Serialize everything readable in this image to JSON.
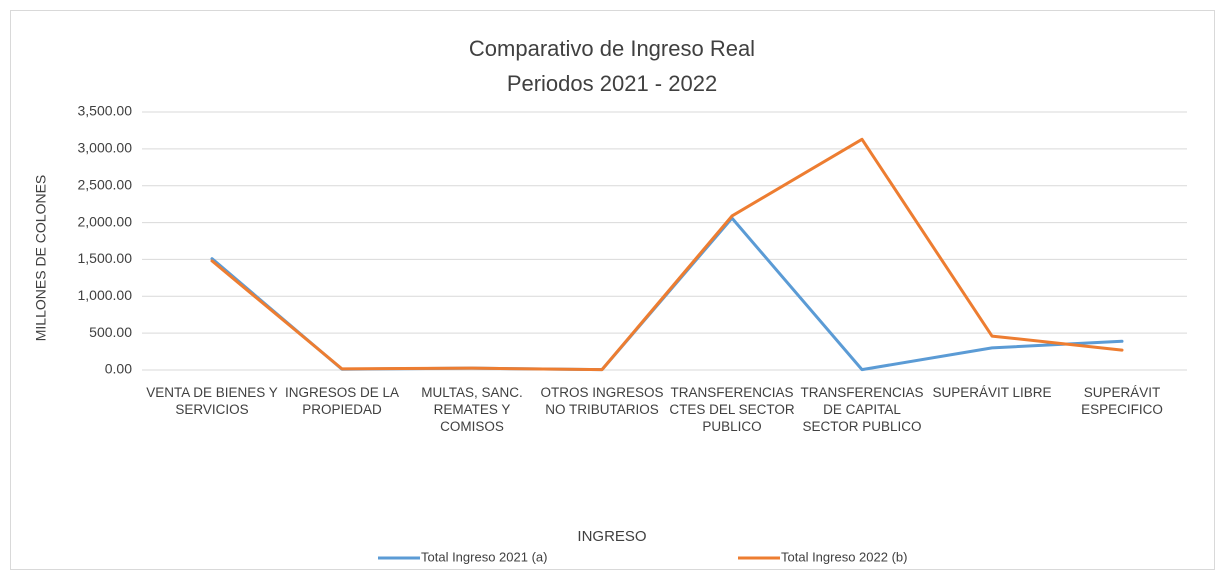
{
  "chart_data": {
    "type": "line",
    "title": "Comparativo de Ingreso Real",
    "subtitle": "Periodos 2021 - 2022",
    "x_label": "INGRESO",
    "y_label": "MILLONES DE COLONES",
    "categories": [
      "VENTA DE BIENES Y SERVICIOS",
      "INGRESOS DE LA PROPIEDAD",
      "MULTAS, SANC. REMATES Y COMISOS",
      "OTROS INGRESOS NO TRIBUTARIOS",
      "TRANSFERENCIAS CTES DEL SECTOR PUBLICO",
      "TRANSFERENCIAS DE CAPITAL SECTOR PUBLICO",
      "SUPERÁVIT LIBRE",
      "SUPERÁVIT ESPECIFICO"
    ],
    "series": [
      {
        "name": "Total Ingreso 2021 (a)",
        "color": "#5b9bd5",
        "values": [
          1510,
          10,
          25,
          5,
          2060,
          5,
          300,
          390
        ]
      },
      {
        "name": "Total Ingreso 2022 (b)",
        "color": "#ed7d31",
        "values": [
          1480,
          15,
          25,
          5,
          2090,
          3130,
          460,
          270
        ]
      }
    ],
    "ylim": [
      0,
      3500
    ],
    "yticks": [
      {
        "value": 0,
        "label": "0.00"
      },
      {
        "value": 500,
        "label": "500.00"
      },
      {
        "value": 1000,
        "label": "1,000.00"
      },
      {
        "value": 1500,
        "label": "1,500.00"
      },
      {
        "value": 2000,
        "label": "2,000.00"
      },
      {
        "value": 2500,
        "label": "2,500.00"
      },
      {
        "value": 3000,
        "label": "3,000.00"
      },
      {
        "value": 3500,
        "label": "3,500.00"
      }
    ],
    "grid": true,
    "legend": "bottom"
  }
}
